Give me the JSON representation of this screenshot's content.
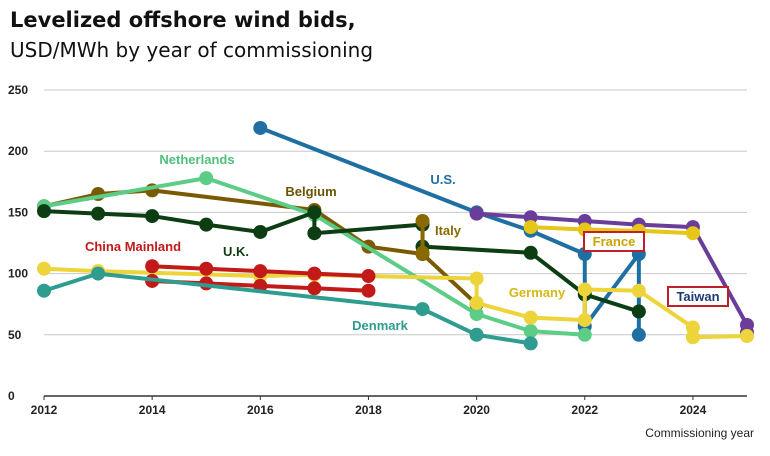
{
  "title": "Levelized offshore wind bids,",
  "subtitle": "USD/MWh by year of commissioning",
  "chart_data": {
    "type": "line",
    "xlabel": "Commissioning year",
    "ylabel": "",
    "xlim": [
      2012,
      2025
    ],
    "ylim": [
      0,
      250
    ],
    "xticks": [
      "2012",
      "2014",
      "2016",
      "2018",
      "2020",
      "2022",
      "2024"
    ],
    "yticks": [
      "0",
      "50",
      "100",
      "150",
      "200",
      "250"
    ],
    "grid": "horizontal",
    "series": [
      {
        "name": "U.S.",
        "color": "#1f6fa3",
        "label_box": false,
        "segments": [
          [
            [
              2016,
              219
            ],
            [
              2020,
              150
            ],
            [
              2021,
              135
            ],
            [
              2022,
              116
            ],
            [
              2022,
              57
            ],
            [
              2023,
              116
            ],
            [
              2023,
              50
            ]
          ]
        ]
      },
      {
        "name": "Taiwan",
        "color": "#6a3d9a",
        "label_box": true,
        "segments": [
          [
            [
              2020,
              149
            ],
            [
              2021,
              146
            ],
            [
              2022,
              143
            ],
            [
              2023,
              140
            ],
            [
              2024,
              138
            ],
            [
              2025,
              58
            ],
            [
              2025,
              52
            ]
          ]
        ]
      },
      {
        "name": "France",
        "color": "#e6c619",
        "label_box": true,
        "segments": [
          [
            [
              2021,
              138
            ],
            [
              2022,
              136
            ],
            [
              2023,
              135
            ],
            [
              2024,
              133
            ]
          ]
        ]
      },
      {
        "name": "Belgium",
        "color": "#7a5a00",
        "label_box": false,
        "segments": [
          [
            [
              2012,
              155
            ],
            [
              2013,
              165
            ],
            [
              2014,
              168
            ],
            [
              2017,
              152
            ],
            [
              2018,
              122
            ],
            [
              2019,
              116
            ],
            [
              2020,
              75
            ]
          ]
        ]
      },
      {
        "name": "Netherlands",
        "color": "#5ccc86",
        "label_box": false,
        "segments": [
          [
            [
              2012,
              155
            ],
            [
              2015,
              178
            ],
            [
              2017,
              148
            ],
            [
              2020,
              67
            ],
            [
              2021,
              53
            ],
            [
              2022,
              50
            ]
          ]
        ]
      },
      {
        "name": "U.K.",
        "color": "#0d3d12",
        "label_box": false,
        "segments": [
          [
            [
              2012,
              151
            ],
            [
              2013,
              149
            ],
            [
              2014,
              147
            ],
            [
              2015,
              140
            ],
            [
              2016,
              134
            ],
            [
              2017,
              150
            ],
            [
              2017,
              133
            ],
            [
              2019,
              140
            ],
            [
              2019,
              122
            ],
            [
              2021,
              117
            ],
            [
              2022,
              83
            ],
            [
              2023,
              69
            ]
          ]
        ]
      },
      {
        "name": "Italy",
        "color": "#8a6a00",
        "label_box": false,
        "segments": [
          [
            [
              2019,
              143
            ],
            [
              2019,
              117
            ]
          ]
        ]
      },
      {
        "name": "Germany",
        "color": "#ecd43a",
        "label_box": false,
        "segments": [
          [
            [
              2012,
              104
            ],
            [
              2013,
              102
            ],
            [
              2016,
              98
            ],
            [
              2017,
              99
            ],
            [
              2020,
              96
            ],
            [
              2020,
              76
            ],
            [
              2021,
              64
            ],
            [
              2022,
              62
            ],
            [
              2022,
              87
            ],
            [
              2023,
              86
            ],
            [
              2024,
              56
            ],
            [
              2024,
              48
            ],
            [
              2025,
              49
            ]
          ]
        ]
      },
      {
        "name": "China Mainland",
        "color": "#c21919",
        "label_box": false,
        "segments": [
          [
            [
              2014,
              106
            ],
            [
              2015,
              104
            ],
            [
              2016,
              102
            ],
            [
              2017,
              100
            ],
            [
              2018,
              98
            ]
          ],
          [
            [
              2014,
              94
            ],
            [
              2015,
              92
            ],
            [
              2016,
              90
            ],
            [
              2017,
              88
            ],
            [
              2018,
              86
            ]
          ]
        ]
      },
      {
        "name": "Denmark",
        "color": "#2e9c8f",
        "label_box": false,
        "segments": [
          [
            [
              2012,
              86
            ],
            [
              2013,
              100
            ],
            [
              2019,
              71
            ],
            [
              2020,
              50
            ],
            [
              2021,
              43
            ]
          ]
        ]
      }
    ]
  }
}
